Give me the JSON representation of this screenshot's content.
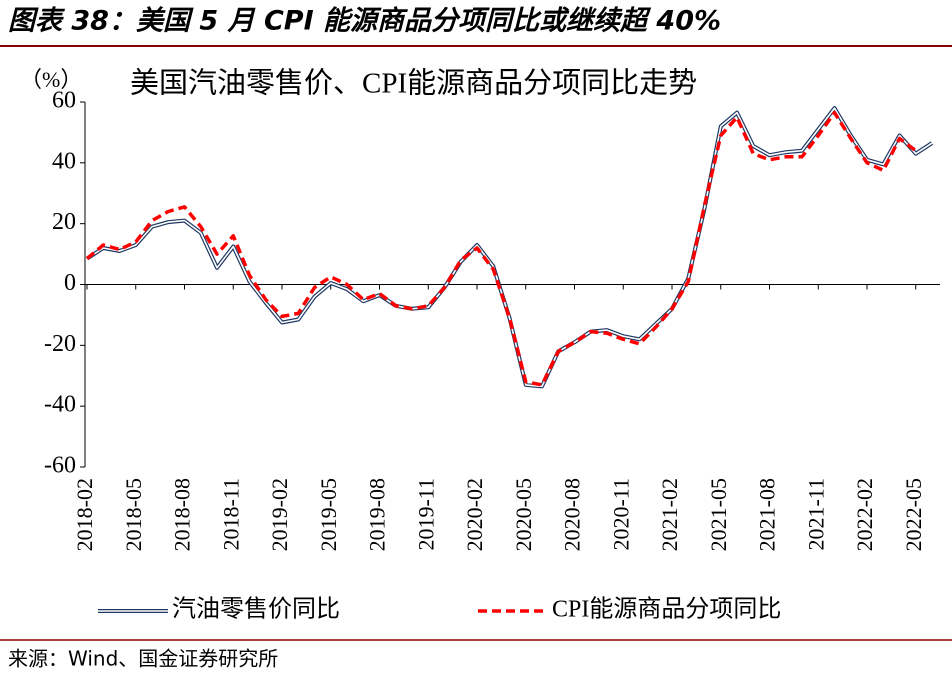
{
  "figure_title": "图表 38：美国 5 月 CPI 能源商品分项同比或继续超 40%",
  "source": "来源：Wind、国金证券研究所",
  "chart_data": {
    "type": "line",
    "title": "美国汽油零售价、CPI能源商品分项同比走势",
    "y_label": "（%）",
    "categories": [
      "2018-02",
      null,
      null,
      "2018-05",
      null,
      null,
      "2018-08",
      null,
      null,
      "2018-11",
      null,
      null,
      "2019-02",
      null,
      null,
      "2019-05",
      null,
      null,
      "2019-08",
      null,
      null,
      "2019-11",
      null,
      null,
      "2020-02",
      null,
      null,
      "2020-05",
      null,
      null,
      "2020-08",
      null,
      null,
      "2020-11",
      null,
      null,
      "2021-02",
      null,
      null,
      "2021-05",
      null,
      null,
      "2021-08",
      null,
      null,
      "2021-11",
      null,
      null,
      "2022-02",
      null,
      null,
      "2022-05",
      null
    ],
    "series": [
      {
        "name": "汽油零售价同比",
        "color": "#1f3864",
        "style": "double",
        "values": [
          8.5,
          12,
          11,
          13,
          19,
          20.5,
          21,
          17,
          5.5,
          12.5,
          1,
          -6,
          -12.5,
          -11.5,
          -4,
          0.5,
          -1.5,
          -5.5,
          -3.5,
          -7,
          -8,
          -7.5,
          -1,
          7.5,
          13,
          6,
          -11,
          -33,
          -33.5,
          -22,
          -19,
          -15.5,
          -15,
          -17,
          -18,
          -13,
          -8,
          2,
          25,
          52,
          56.5,
          45.5,
          42.5,
          43.5,
          44,
          51,
          58,
          49,
          41,
          39.5,
          49,
          43,
          46.5
        ]
      },
      {
        "name": "CPI能源商品分项同比",
        "color": "#ff0000",
        "style": "dashed",
        "values": [
          8.5,
          13,
          11.5,
          14,
          21,
          24,
          25.5,
          19,
          10,
          16,
          3,
          -5,
          -10.5,
          -9.5,
          -1,
          2.5,
          0,
          -5,
          -3,
          -7,
          -8,
          -7,
          -1,
          8,
          12,
          5,
          -11,
          -32,
          -33,
          -22,
          -19,
          -15.5,
          -16,
          -18,
          -19.5,
          -14,
          -8,
          1,
          26,
          49,
          55,
          43,
          41,
          42,
          42,
          49,
          56.5,
          48,
          40,
          37.5,
          48,
          44,
          null
        ]
      }
    ],
    "ylim": [
      -60,
      60
    ],
    "yticks": [
      -60,
      -40,
      -20,
      0,
      20,
      40,
      60
    ],
    "legend": "bottom"
  }
}
